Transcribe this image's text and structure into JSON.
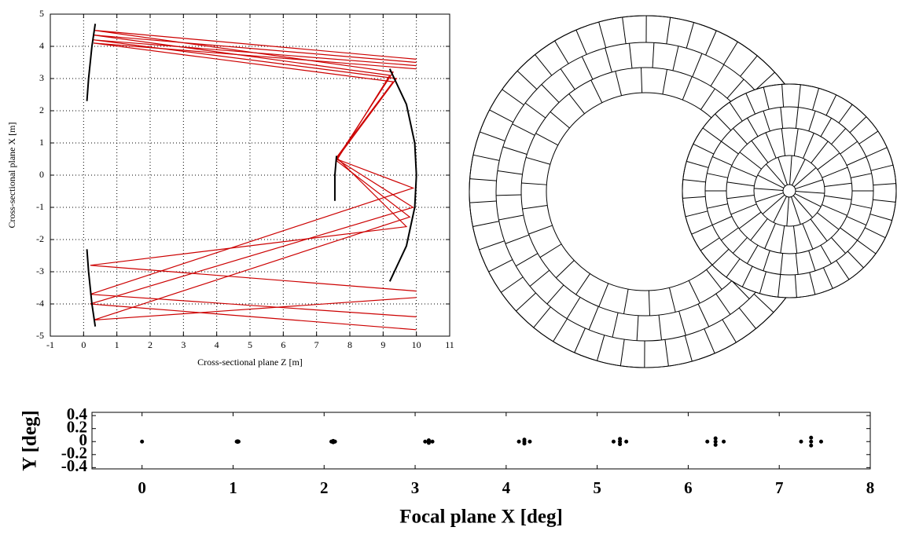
{
  "chart_data": [
    {
      "type": "line",
      "xlabel": "Cross-sectional plane Z [m]",
      "ylabel": "Cross-sectional plane X [m]",
      "xlim": [
        -1,
        11
      ],
      "ylim": [
        -5,
        5
      ],
      "xticks": [
        -1,
        0,
        1,
        2,
        3,
        4,
        5,
        6,
        7,
        8,
        9,
        10,
        11
      ],
      "yticks": [
        -5,
        -4,
        -3,
        -2,
        -1,
        0,
        1,
        2,
        3,
        4,
        5
      ],
      "grid": true,
      "series": [
        {
          "color": "#cc0000",
          "x": [
            10,
            0.3,
            9.3,
            7.6,
            9.9,
            0.2,
            10
          ],
          "values": [
            3.6,
            4.5,
            3.2,
            0.5,
            -0.4,
            -3.7,
            -4.4
          ]
        },
        {
          "color": "#cc0000",
          "x": [
            10,
            0.3,
            9.4,
            7.6,
            9.9,
            0.2,
            10
          ],
          "values": [
            3.4,
            4.2,
            3.0,
            0.5,
            -1.0,
            -4.0,
            -4.8
          ]
        },
        {
          "color": "#cc0000",
          "x": [
            10,
            0.3,
            9.2,
            7.6,
            9.8,
            0.3,
            10
          ],
          "values": [
            3.5,
            4.35,
            3.1,
            0.45,
            -1.3,
            -4.5,
            -3.8
          ]
        },
        {
          "color": "#cc0000",
          "x": [
            10,
            0.3,
            9.3,
            7.6,
            9.7,
            0.2,
            10
          ],
          "values": [
            3.3,
            4.1,
            2.9,
            0.55,
            -1.6,
            -2.8,
            -3.6
          ]
        },
        {
          "color": "#000000",
          "x": [
            0.35,
            0.25,
            0.15,
            0.1
          ],
          "values": [
            4.7,
            4.0,
            3.0,
            2.3
          ]
        },
        {
          "color": "#000000",
          "x": [
            0.1,
            0.15,
            0.25,
            0.35
          ],
          "values": [
            -2.3,
            -3.0,
            -4.0,
            -4.7
          ]
        },
        {
          "color": "#000000",
          "x": [
            9.2,
            9.7,
            9.95,
            10,
            9.95,
            9.7,
            9.2
          ],
          "values": [
            3.3,
            2.2,
            1.0,
            0,
            -1.0,
            -2.2,
            -3.3
          ]
        },
        {
          "color": "#000000",
          "x": [
            7.6,
            7.55,
            7.55
          ],
          "values": [
            0.6,
            0,
            -0.8
          ]
        }
      ]
    },
    {
      "type": "scatter",
      "xlabel": "Focal plane X [deg]",
      "ylabel": "Y [deg]",
      "xlim": [
        -0.55,
        8
      ],
      "ylim": [
        -0.42,
        0.45
      ],
      "xticks": [
        0,
        1,
        2,
        3,
        4,
        5,
        6,
        7,
        8
      ],
      "yticks": [
        -0.4,
        -0.2,
        0,
        0.2,
        0.4
      ],
      "grid": false,
      "color": "#000000",
      "x": [
        0,
        1.05,
        1.04,
        1.06,
        1.05,
        1.05,
        2.1,
        2.08,
        2.12,
        2.1,
        2.1,
        3.15,
        3.11,
        3.19,
        3.15,
        3.15,
        4.2,
        4.14,
        4.26,
        4.2,
        4.2,
        5.25,
        5.18,
        5.32,
        5.25,
        5.25,
        6.3,
        6.21,
        6.39,
        6.3,
        6.3,
        7.35,
        7.24,
        7.46,
        7.35,
        7.35
      ],
      "values": [
        0,
        0,
        0,
        0,
        0.005,
        -0.005,
        0,
        0,
        0,
        0.01,
        -0.01,
        0,
        0,
        0,
        0.02,
        -0.02,
        0,
        0,
        0,
        0.03,
        -0.03,
        0,
        0,
        0,
        0.04,
        -0.04,
        0,
        0,
        0,
        0.05,
        -0.05,
        0,
        0,
        0,
        0.06,
        -0.06
      ]
    }
  ]
}
